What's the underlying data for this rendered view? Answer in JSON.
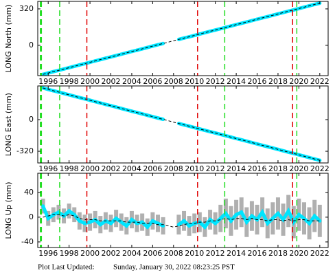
{
  "chart_data": [
    {
      "type": "scatter",
      "ylabel": "LONG North (mm)",
      "x": [
        1995.5,
        1996,
        1996.5,
        1997,
        1997.5,
        1998,
        1998.5,
        1999,
        1999.5,
        2000,
        2000.5,
        2001,
        2001.5,
        2002,
        2002.5,
        2003,
        2003.5,
        2004,
        2004.5,
        2005,
        2005.5,
        2006,
        2006.5,
        2007,
        2007.5,
        2008,
        2008.5,
        2009,
        2009.5,
        2010,
        2010.5,
        2011,
        2011.5,
        2012,
        2012.5,
        2013,
        2013.5,
        2014,
        2014.5,
        2015,
        2015.5,
        2016,
        2016.5,
        2017,
        2017.5,
        2018,
        2018.5,
        2019,
        2019.5,
        2020,
        2020.5,
        2021,
        2021.5,
        2022
      ],
      "series": [
        {
          "name": "data",
          "color": "#00e5ff",
          "values": [
            -255,
            -243,
            -231,
            -220,
            -208,
            -196,
            -184,
            -172,
            -161,
            -149,
            -137,
            -125,
            -113,
            -102,
            -90,
            -78,
            -66,
            -54,
            -43,
            -31,
            -19,
            -7,
            5,
            16,
            null,
            null,
            52,
            64,
            75,
            87,
            99,
            111,
            123,
            134,
            146,
            158,
            170,
            182,
            193,
            205,
            217,
            229,
            241,
            252,
            264,
            276,
            288,
            300,
            311,
            323,
            335,
            347,
            359,
            370
          ]
        },
        {
          "name": "model",
          "color": "#000000",
          "values": [
            -255,
            -243,
            -231,
            -220,
            -208,
            -196,
            -184,
            -172,
            -161,
            -149,
            -137,
            -125,
            -113,
            -102,
            -90,
            -78,
            -66,
            -54,
            -43,
            -31,
            -19,
            -7,
            5,
            16,
            28,
            40,
            52,
            64,
            75,
            87,
            99,
            111,
            123,
            134,
            146,
            158,
            170,
            182,
            193,
            205,
            217,
            229,
            241,
            252,
            264,
            276,
            288,
            300,
            311,
            323,
            335,
            347,
            359,
            370
          ]
        }
      ],
      "vlines": [
        {
          "x": 1995.3,
          "color": "#22dd22"
        },
        {
          "x": 1997.1,
          "color": "#22dd22"
        },
        {
          "x": 1999.7,
          "color": "#e00000"
        },
        {
          "x": 2010.3,
          "color": "#e00000"
        },
        {
          "x": 2012.9,
          "color": "#22dd22"
        },
        {
          "x": 2019.4,
          "color": "#e00000"
        },
        {
          "x": 2019.8,
          "color": "#22dd22"
        }
      ],
      "xlim": [
        1995,
        2022.8
      ],
      "xticks": [
        1996,
        1998,
        2000,
        2002,
        2004,
        2006,
        2008,
        2010,
        2012,
        2014,
        2016,
        2018,
        2020,
        2022
      ],
      "ylim": [
        -266,
        386
      ],
      "yticks": [
        0,
        320
      ]
    },
    {
      "type": "scatter",
      "ylabel": "LONG East (mm)",
      "x": [
        1995.5,
        1996,
        1996.5,
        1997,
        1997.5,
        1998,
        1998.5,
        1999,
        1999.5,
        2000,
        2000.5,
        2001,
        2001.5,
        2002,
        2002.5,
        2003,
        2003.5,
        2004,
        2004.5,
        2005,
        2005.5,
        2006,
        2006.5,
        2007,
        2007.5,
        2008,
        2008.5,
        2009,
        2009.5,
        2010,
        2010.5,
        2011,
        2011.5,
        2012,
        2012.5,
        2013,
        2013.5,
        2014,
        2014.5,
        2015,
        2015.5,
        2016,
        2016.5,
        2017,
        2017.5,
        2018,
        2018.5,
        2019,
        2019.5,
        2020,
        2020.5,
        2021,
        2021.5,
        2022
      ],
      "series": [
        {
          "name": "data",
          "color": "#00e5ff",
          "values": [
            320,
            306,
            292,
            279,
            265,
            251,
            237,
            223,
            210,
            196,
            182,
            168,
            154,
            141,
            127,
            113,
            99,
            85,
            72,
            58,
            44,
            30,
            16,
            3,
            null,
            null,
            -39,
            -53,
            -66,
            -80,
            -94,
            -108,
            -122,
            -135,
            -149,
            -163,
            -177,
            -191,
            -204,
            -218,
            -232,
            -246,
            -260,
            -273,
            -287,
            -301,
            -315,
            -329,
            -342,
            -356,
            -370,
            -384,
            -398,
            -411
          ]
        },
        {
          "name": "model",
          "color": "#000000",
          "values": [
            320,
            306,
            292,
            279,
            265,
            251,
            237,
            223,
            210,
            196,
            182,
            168,
            154,
            141,
            127,
            113,
            99,
            85,
            72,
            58,
            44,
            30,
            16,
            3,
            -11,
            -25,
            -39,
            -53,
            -66,
            -80,
            -94,
            -108,
            -122,
            -135,
            -149,
            -163,
            -177,
            -191,
            -204,
            -218,
            -232,
            -246,
            -260,
            -273,
            -287,
            -301,
            -315,
            -329,
            -342,
            -356,
            -370,
            -384,
            -398,
            -411
          ]
        }
      ],
      "vlines": [
        {
          "x": 1995.3,
          "color": "#22dd22"
        },
        {
          "x": 1997.1,
          "color": "#22dd22"
        },
        {
          "x": 1999.7,
          "color": "#e00000"
        },
        {
          "x": 2010.3,
          "color": "#e00000"
        },
        {
          "x": 2012.9,
          "color": "#22dd22"
        },
        {
          "x": 2019.4,
          "color": "#e00000"
        },
        {
          "x": 2019.8,
          "color": "#22dd22"
        }
      ],
      "xlim": [
        1995,
        2022.8
      ],
      "xticks": [
        1996,
        1998,
        2000,
        2002,
        2004,
        2006,
        2008,
        2010,
        2012,
        2014,
        2016,
        2018,
        2020,
        2022
      ],
      "ylim": [
        -438,
        341
      ],
      "yticks": [
        -320,
        0
      ]
    },
    {
      "type": "scatter",
      "ylabel": "LONG Up (mm)",
      "x": [
        1995.5,
        1996,
        1996.5,
        1997,
        1997.5,
        1998,
        1998.5,
        1999,
        1999.5,
        2000,
        2000.5,
        2001,
        2001.5,
        2002,
        2002.5,
        2003,
        2003.5,
        2004,
        2004.5,
        2005,
        2005.5,
        2006,
        2006.5,
        2007,
        2007.5,
        2008,
        2008.5,
        2009,
        2009.5,
        2010,
        2010.5,
        2011,
        2011.5,
        2012,
        2012.5,
        2013,
        2013.5,
        2014,
        2014.5,
        2015,
        2015.5,
        2016,
        2016.5,
        2017,
        2017.5,
        2018,
        2018.5,
        2019,
        2019.5,
        2020,
        2020.5,
        2021,
        2021.5,
        2022
      ],
      "series": [
        {
          "name": "data",
          "color": "#00e5ff",
          "errors": [
            12,
            12,
            12,
            12,
            12,
            12,
            12,
            14,
            14,
            14,
            14,
            14,
            14,
            14,
            14,
            14,
            14,
            14,
            14,
            14,
            14,
            14,
            14,
            14,
            null,
            null,
            16,
            16,
            16,
            16,
            16,
            16,
            16,
            18,
            22,
            24,
            24,
            24,
            24,
            24,
            24,
            24,
            24,
            24,
            26,
            26,
            26,
            26,
            26,
            26,
            26,
            26,
            26,
            26
          ],
          "values": [
            18,
            -2,
            4,
            8,
            2,
            10,
            4,
            -6,
            -10,
            -8,
            -4,
            -12,
            -6,
            -10,
            -2,
            -8,
            -14,
            -4,
            -10,
            -8,
            -16,
            -6,
            -10,
            -14,
            null,
            null,
            -12,
            -6,
            -14,
            -10,
            -8,
            -16,
            -4,
            -10,
            -2,
            6,
            -6,
            4,
            8,
            -8,
            2,
            -4,
            8,
            -10,
            -2,
            6,
            -4,
            10,
            -8,
            4,
            -2,
            -10,
            2,
            -6
          ]
        },
        {
          "name": "model",
          "color": "#000000",
          "values": [
            0,
            2,
            4,
            4,
            2,
            4,
            2,
            -2,
            -4,
            -4,
            -4,
            -6,
            -6,
            -6,
            -6,
            -6,
            -8,
            -8,
            -8,
            -10,
            -10,
            -10,
            -12,
            -12,
            -14,
            -16,
            -14,
            -12,
            -10,
            -10,
            -8,
            -8,
            -6,
            -6,
            -4,
            -2,
            -4,
            -2,
            -2,
            -4,
            -2,
            -4,
            -4,
            -6,
            -4,
            -4,
            -6,
            -4,
            -6,
            -4,
            -4,
            -6,
            -6,
            -6
          ]
        }
      ],
      "vlines": [
        {
          "x": 1995.3,
          "color": "#22dd22"
        },
        {
          "x": 1997.1,
          "color": "#22dd22"
        },
        {
          "x": 1999.7,
          "color": "#e00000"
        },
        {
          "x": 2010.3,
          "color": "#e00000"
        },
        {
          "x": 2012.9,
          "color": "#22dd22"
        },
        {
          "x": 2019.4,
          "color": "#e00000"
        },
        {
          "x": 2019.8,
          "color": "#22dd22"
        }
      ],
      "xlim": [
        1995,
        2022.8
      ],
      "xticks": [
        1996,
        1998,
        2000,
        2002,
        2004,
        2006,
        2008,
        2010,
        2012,
        2014,
        2016,
        2018,
        2020,
        2022
      ],
      "ylim": [
        -49,
        71
      ],
      "yticks": [
        -40,
        0,
        40
      ]
    }
  ],
  "footer": {
    "label": "Plot Last Updated:",
    "date": "Sunday, January 30, 2022 08:23:25 PST"
  }
}
